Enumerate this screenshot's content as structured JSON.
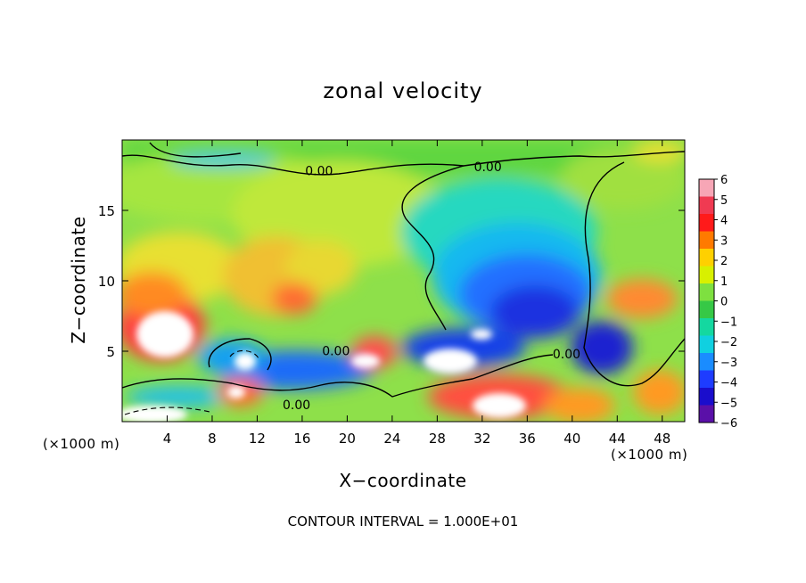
{
  "chart_data": {
    "type": "heatmap",
    "title": "zonal velocity",
    "xlabel": "X−coordinate",
    "ylabel": "Z−coordinate",
    "x_unit_label": "(×1000 m)",
    "x_ticks": [
      "4",
      "8",
      "12",
      "16",
      "20",
      "24",
      "28",
      "32",
      "36",
      "40",
      "44",
      "48"
    ],
    "y_ticks": [
      "5",
      "10",
      "15"
    ],
    "xlim": [
      0,
      50
    ],
    "ylim": [
      0,
      20
    ],
    "colorbar": {
      "ticks": [
        "6",
        "5",
        "4",
        "3",
        "2",
        "1",
        "0",
        "−1",
        "−2",
        "−3",
        "−4",
        "−5",
        "−6"
      ],
      "range": [
        -6,
        6
      ],
      "colors": [
        "#f7a6b6",
        "#f03a52",
        "#ff1a1a",
        "#ff7a00",
        "#ffd000",
        "#d8f000",
        "#7ee040",
        "#36c846",
        "#14d8a0",
        "#10d0e0",
        "#1a8cff",
        "#1e3cff",
        "#1a0dcc",
        "#5a10a8"
      ]
    },
    "contour_label": "0.00",
    "footnote": "CONTOUR INTERVAL = 1.000E+01",
    "field_description": "2D zonal velocity field; positive (red) low-level jets near x≈0–8 and x≈40–50 below z≈5, strong negative (blue) core centered near x≈36–40, z≈5–10; near-zero (green/yellow) elsewhere aloft."
  }
}
